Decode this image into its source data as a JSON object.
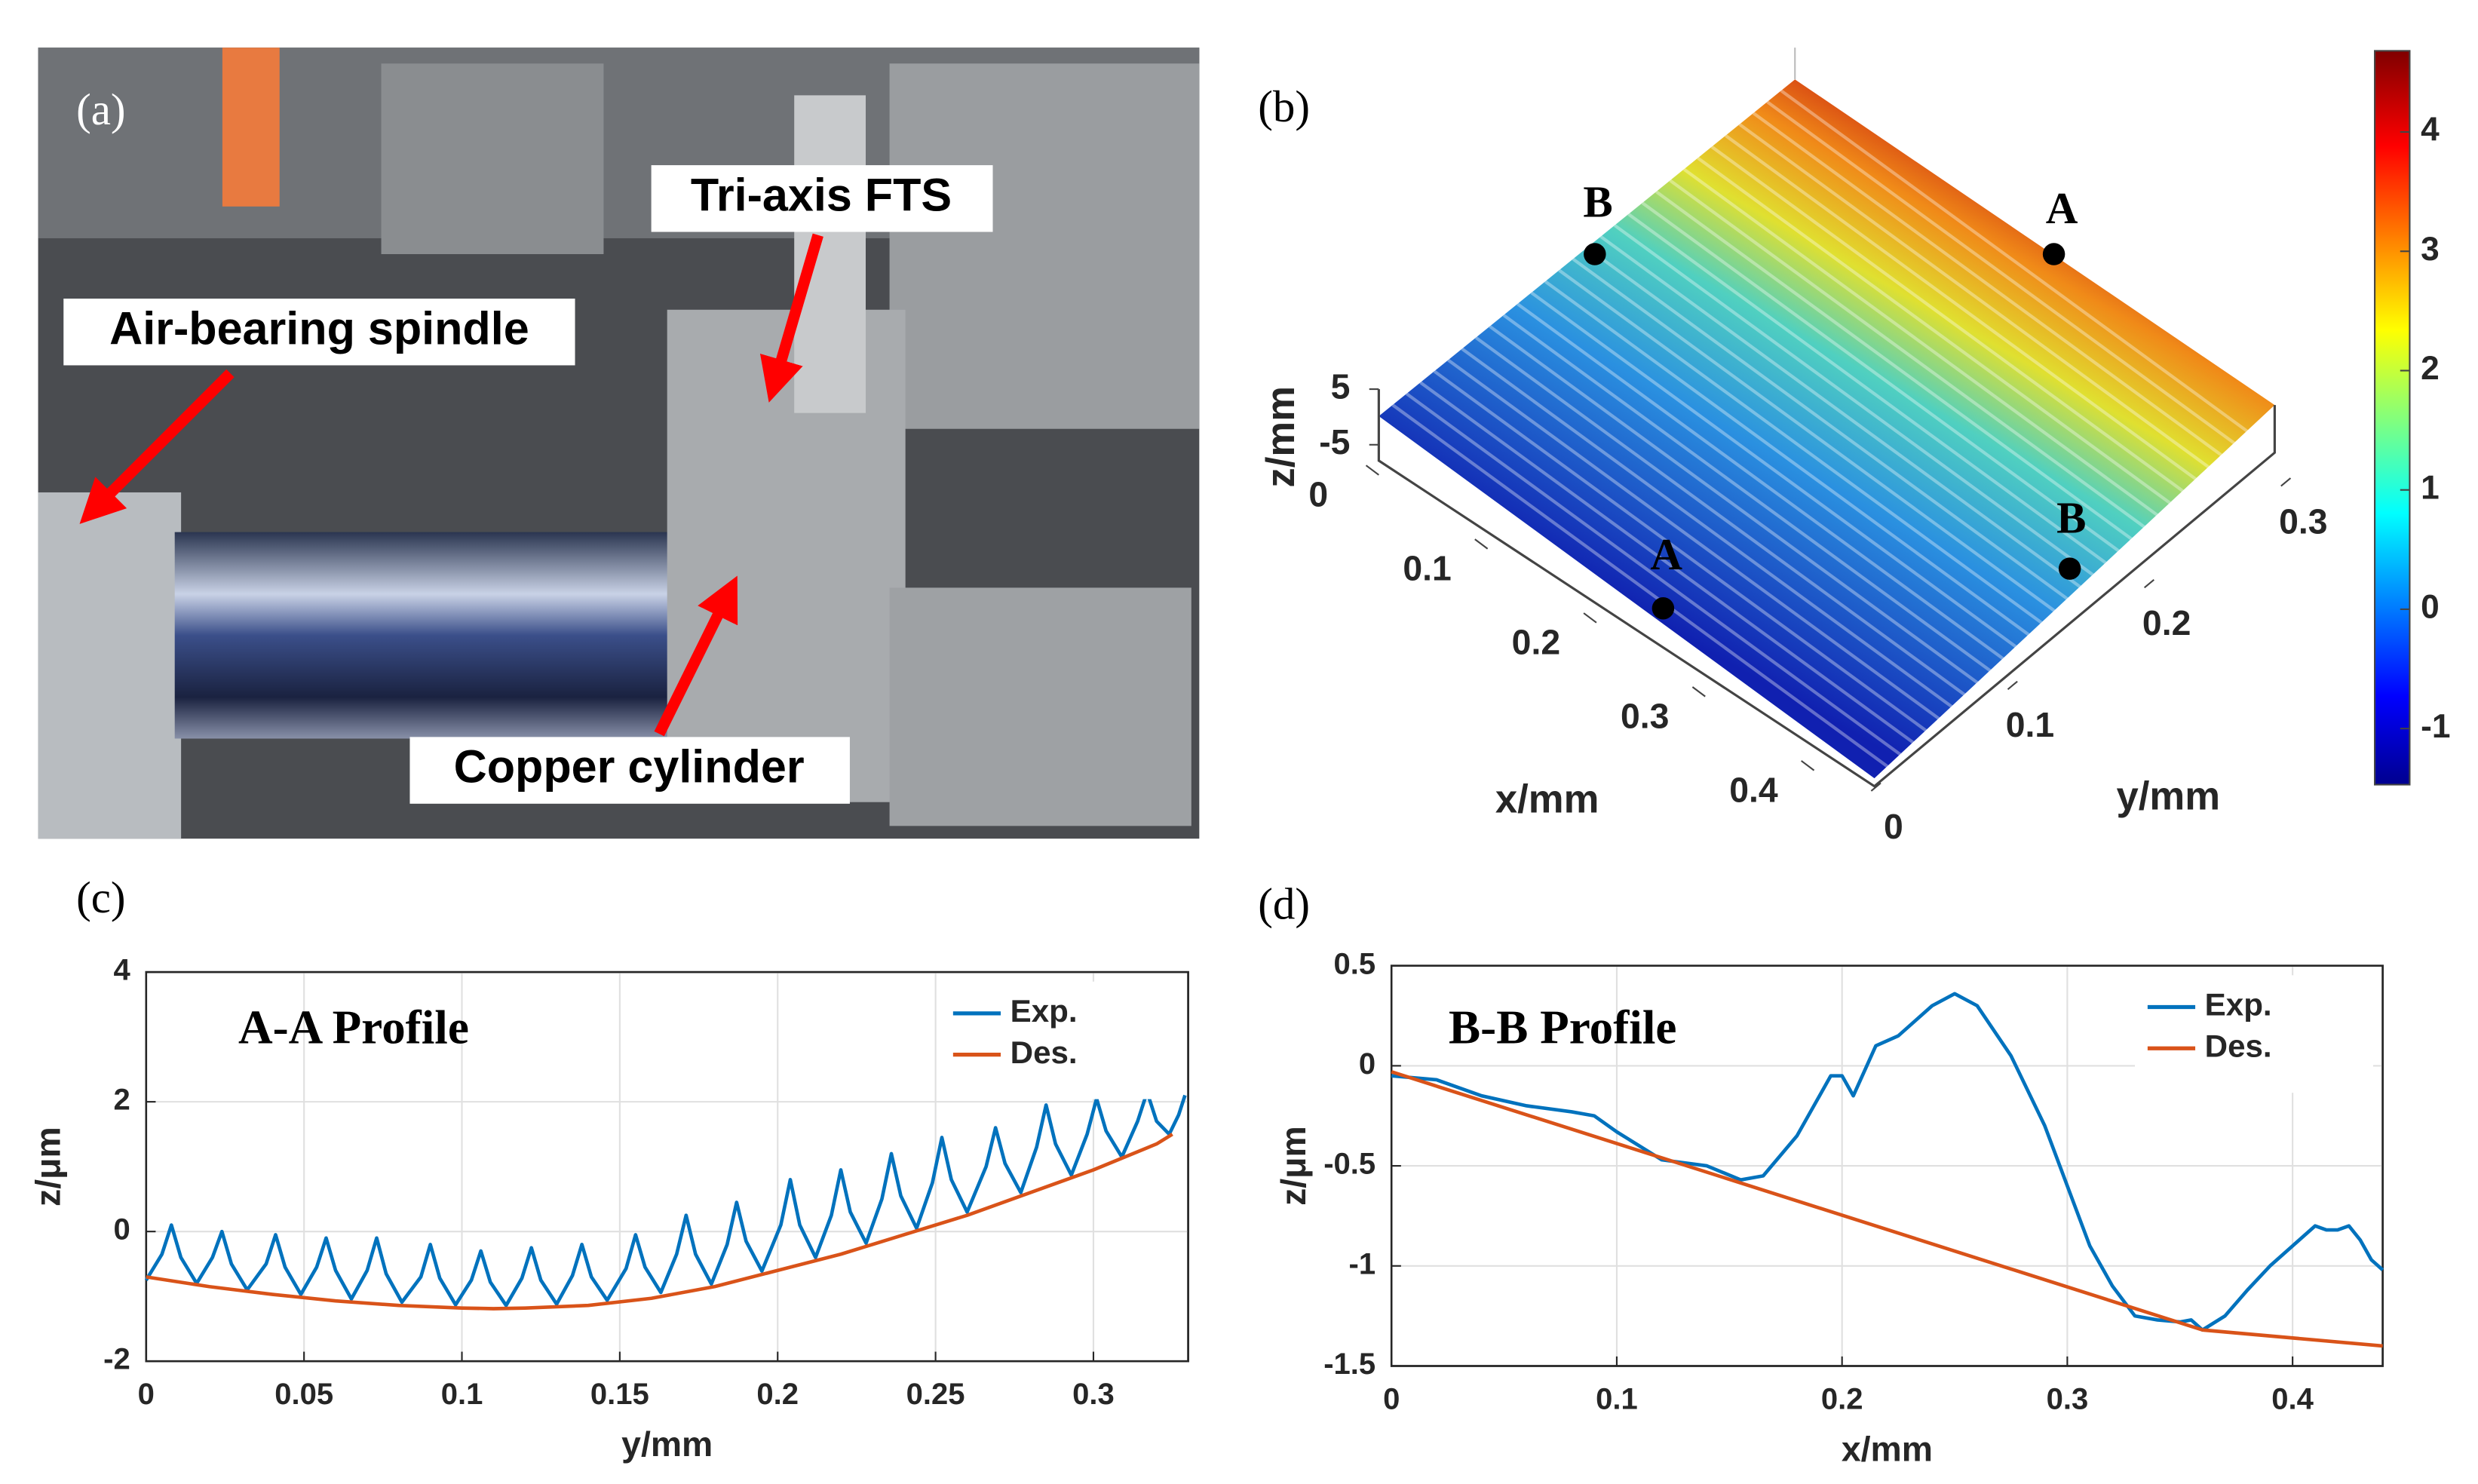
{
  "photo": {
    "panel_label": "(a)",
    "labels": [
      "Tri-axis FTS",
      "Air-bearing spindle",
      "Copper cylinder"
    ]
  },
  "chart_data": [
    {
      "type": "surface",
      "panel_label": "(b)",
      "xlabel": "x/mm",
      "ylabel": "y/mm",
      "zlabel": "z/mm",
      "xlim": [
        0,
        0.45
      ],
      "xticks": [
        0,
        0.1,
        0.2,
        0.3,
        0.4
      ],
      "ylim": [
        0,
        0.33
      ],
      "yticks": [
        0,
        0.1,
        0.2,
        0.3
      ],
      "zlim": [
        -5,
        5
      ],
      "zticks": [
        5,
        -5
      ],
      "clim": [
        -1.47,
        4.68
      ],
      "cticks": [
        4,
        3,
        2,
        1,
        0,
        -1
      ],
      "annotations": [
        "B",
        "A",
        "A",
        "B"
      ]
    },
    {
      "type": "line",
      "panel_label": "(c)",
      "annotation": "A-A Profile",
      "xlabel": "y/mm",
      "ylabel": "z/μm",
      "xlim": [
        0,
        0.33
      ],
      "xticks": [
        0,
        0.05,
        0.1,
        0.15,
        0.2,
        0.25,
        0.3
      ],
      "ylim": [
        -2,
        4
      ],
      "yticks": [
        -2,
        0,
        2,
        4
      ],
      "grid": true,
      "legend": "upper right",
      "series": [
        {
          "name": "Exp.",
          "color": "#0072bd",
          "x": [
            0,
            0.005,
            0.008,
            0.011,
            0.016,
            0.021,
            0.024,
            0.027,
            0.032,
            0.038,
            0.041,
            0.044,
            0.049,
            0.054,
            0.057,
            0.06,
            0.065,
            0.07,
            0.073,
            0.076,
            0.081,
            0.087,
            0.09,
            0.093,
            0.098,
            0.103,
            0.106,
            0.109,
            0.114,
            0.119,
            0.122,
            0.125,
            0.13,
            0.135,
            0.138,
            0.141,
            0.146,
            0.152,
            0.155,
            0.158,
            0.163,
            0.168,
            0.171,
            0.174,
            0.179,
            0.184,
            0.187,
            0.19,
            0.195,
            0.201,
            0.204,
            0.207,
            0.212,
            0.217,
            0.22,
            0.223,
            0.228,
            0.233,
            0.236,
            0.239,
            0.244,
            0.249,
            0.252,
            0.255,
            0.26,
            0.266,
            0.269,
            0.272,
            0.277,
            0.282,
            0.285,
            0.288,
            0.293,
            0.298,
            0.301,
            0.304,
            0.309,
            0.314,
            0.317,
            0.32,
            0.324,
            0.327,
            0.329
          ],
          "values": [
            -0.75,
            -0.35,
            0.1,
            -0.4,
            -0.8,
            -0.4,
            0,
            -0.5,
            -0.9,
            -0.5,
            -0.05,
            -0.55,
            -0.97,
            -0.55,
            -0.1,
            -0.6,
            -1.04,
            -0.6,
            -0.1,
            -0.65,
            -1.09,
            -0.7,
            -0.2,
            -0.72,
            -1.13,
            -0.75,
            -0.3,
            -0.78,
            -1.14,
            -0.72,
            -0.25,
            -0.75,
            -1.12,
            -0.68,
            -0.2,
            -0.7,
            -1.06,
            -0.57,
            -0.05,
            -0.55,
            -0.94,
            -0.35,
            0.25,
            -0.35,
            -0.81,
            -0.2,
            0.45,
            -0.15,
            -0.61,
            0.1,
            0.8,
            0.1,
            -0.4,
            0.25,
            0.95,
            0.3,
            -0.18,
            0.5,
            1.2,
            0.55,
            0.05,
            0.75,
            1.45,
            0.8,
            0.3,
            1.0,
            1.6,
            1.05,
            0.6,
            1.3,
            1.95,
            1.35,
            0.87,
            1.5,
            2.05,
            1.55,
            1.15,
            1.7,
            2.15,
            1.7,
            1.5,
            1.8,
            2.1
          ]
        },
        {
          "name": "Des.",
          "color": "#d95319",
          "x": [
            0,
            0.02,
            0.04,
            0.06,
            0.08,
            0.1,
            0.11,
            0.12,
            0.14,
            0.16,
            0.18,
            0.2,
            0.22,
            0.24,
            0.26,
            0.28,
            0.3,
            0.32,
            0.325
          ],
          "values": [
            -0.7,
            -0.85,
            -0.97,
            -1.07,
            -1.14,
            -1.18,
            -1.19,
            -1.18,
            -1.14,
            -1.03,
            -0.85,
            -0.6,
            -0.35,
            -0.05,
            0.25,
            0.6,
            0.95,
            1.35,
            1.5
          ]
        }
      ]
    },
    {
      "type": "line",
      "panel_label": "(d)",
      "annotation": "B-B Profile",
      "xlabel": "x/mm",
      "ylabel": "z/μm",
      "xlim": [
        0,
        0.44
      ],
      "xticks": [
        0,
        0.1,
        0.2,
        0.3,
        0.4
      ],
      "ylim": [
        -1.5,
        0.5
      ],
      "yticks": [
        -1.5,
        -1,
        -0.5,
        0,
        0.5
      ],
      "grid": true,
      "legend": "upper right",
      "series": [
        {
          "name": "Exp.",
          "color": "#0072bd",
          "x": [
            0,
            0.02,
            0.04,
            0.06,
            0.08,
            0.09,
            0.1,
            0.12,
            0.14,
            0.155,
            0.165,
            0.18,
            0.195,
            0.2,
            0.205,
            0.215,
            0.225,
            0.24,
            0.25,
            0.26,
            0.275,
            0.29,
            0.3,
            0.31,
            0.32,
            0.33,
            0.34,
            0.35,
            0.355,
            0.36,
            0.37,
            0.38,
            0.39,
            0.4,
            0.41,
            0.415,
            0.42,
            0.425,
            0.43,
            0.435,
            0.44
          ],
          "values": [
            -0.05,
            -0.07,
            -0.15,
            -0.2,
            -0.23,
            -0.25,
            -0.33,
            -0.47,
            -0.5,
            -0.57,
            -0.55,
            -0.35,
            -0.05,
            -0.05,
            -0.15,
            0.1,
            0.15,
            0.3,
            0.36,
            0.3,
            0.05,
            -0.3,
            -0.6,
            -0.9,
            -1.1,
            -1.25,
            -1.27,
            -1.28,
            -1.27,
            -1.32,
            -1.25,
            -1.12,
            -1.0,
            -0.9,
            -0.8,
            -0.82,
            -0.82,
            -0.8,
            -0.87,
            -0.97,
            -1.02
          ]
        },
        {
          "name": "Des.",
          "color": "#d95319",
          "x": [
            0,
            0.36,
            0.44
          ],
          "values": [
            -0.03,
            -1.32,
            -1.4
          ]
        }
      ]
    }
  ]
}
